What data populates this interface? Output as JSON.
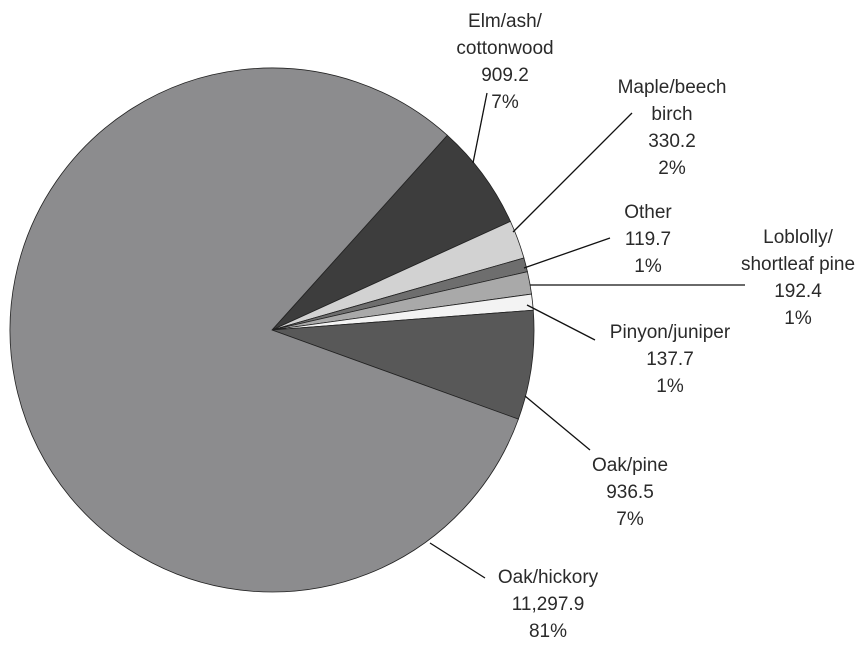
{
  "chart_data": {
    "type": "pie",
    "categories": [
      "Elm/ash/\ncottonwood",
      "Maple/beech\nbirch",
      "Other",
      "Loblolly/\nshortleaf pine",
      "Pinyon/juniper",
      "Oak/pine",
      "Oak/hickory"
    ],
    "values": [
      909.2,
      330.2,
      119.7,
      192.4,
      137.7,
      936.5,
      11297.9
    ],
    "value_labels": [
      "909.2",
      "330.2",
      "119.7",
      "192.4",
      "137.7",
      "936.5",
      "11,297.9"
    ],
    "percents": [
      {
        "value": 7,
        "label": "7%"
      },
      {
        "value": 2,
        "label": "2%"
      },
      {
        "value": 1,
        "label": "1%"
      },
      {
        "value": 1,
        "label": "1%"
      },
      {
        "value": 1,
        "label": "1%"
      },
      {
        "value": 7,
        "label": "7%"
      },
      {
        "value": 81,
        "label": "81%"
      }
    ],
    "colors": [
      "#3d3d3d",
      "#d2d2d2",
      "#6e6e6e",
      "#a9a9a9",
      "#f3f3f3",
      "#585858",
      "#8c8c8e"
    ]
  }
}
